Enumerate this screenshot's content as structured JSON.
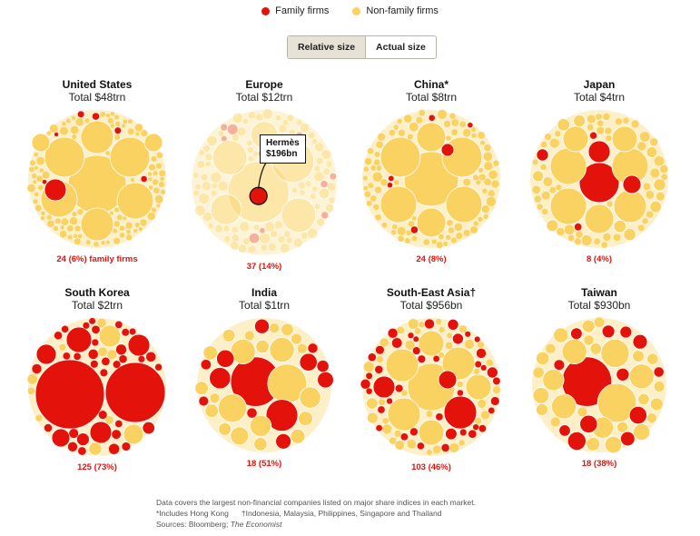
{
  "legend": {
    "family": {
      "label": "Family firms",
      "color": "#e3120b"
    },
    "nonfamily": {
      "label": "Non-family firms",
      "color": "#f9d262"
    }
  },
  "toggle": {
    "relative_label": "Relative size",
    "actual_label": "Actual size",
    "selected": "Relative size"
  },
  "callout": {
    "line1": "Hermès",
    "line2": "$196bn"
  },
  "notes": {
    "line1": "Data covers the largest non-financial companies listed on major share indices in each market.",
    "hongkong": "*Includes Hong Kong",
    "sea": "†Indonesia, Malaysia, Philippines, Singapore and Thailand",
    "sources_prefix": "Sources: Bloomberg; ",
    "sources_pub": "The Economist"
  },
  "chart_data": [
    {
      "type": "bubble",
      "market": "United States",
      "title": "United States",
      "total": "Total $48trn",
      "count_label": "24 (6%) family firms",
      "family_firms": 24,
      "family_share_pct": 6,
      "firms": 400,
      "highlight": false
    },
    {
      "type": "bubble",
      "market": "Europe",
      "title": "Europe",
      "total": "Total $12trn",
      "count_label": "37 (14%)",
      "family_firms": 37,
      "family_share_pct": 14,
      "firms": 264,
      "highlight": true,
      "annotation": {
        "name": "Hermès",
        "value": "$196bn"
      }
    },
    {
      "type": "bubble",
      "market": "China",
      "title": "China*",
      "total": "Total $8trn",
      "count_label": "24 (8%)",
      "family_firms": 24,
      "family_share_pct": 8,
      "firms": 300,
      "highlight": false
    },
    {
      "type": "bubble",
      "market": "Japan",
      "title": "Japan",
      "total": "Total $4trn",
      "count_label": "8 (4%)",
      "family_firms": 8,
      "family_share_pct": 4,
      "firms": 200,
      "highlight": false
    },
    {
      "type": "bubble",
      "market": "South Korea",
      "title": "South Korea",
      "total": "Total $2trn",
      "count_label": "125 (73%)",
      "family_firms": 125,
      "family_share_pct": 73,
      "firms": 171,
      "highlight": false
    },
    {
      "type": "bubble",
      "market": "India",
      "title": "India",
      "total": "Total $1trn",
      "count_label": "18 (51%)",
      "family_firms": 18,
      "family_share_pct": 51,
      "firms": 35,
      "highlight": false
    },
    {
      "type": "bubble",
      "market": "South-East Asia",
      "title": "South-East Asia†",
      "total": "Total $956bn",
      "count_label": "103 (46%)",
      "family_firms": 103,
      "family_share_pct": 46,
      "firms": 224,
      "highlight": false
    },
    {
      "type": "bubble",
      "market": "Taiwan",
      "title": "Taiwan",
      "total": "Total $930bn",
      "count_label": "18 (38%)",
      "family_firms": 18,
      "family_share_pct": 38,
      "firms": 47,
      "highlight": false
    }
  ]
}
